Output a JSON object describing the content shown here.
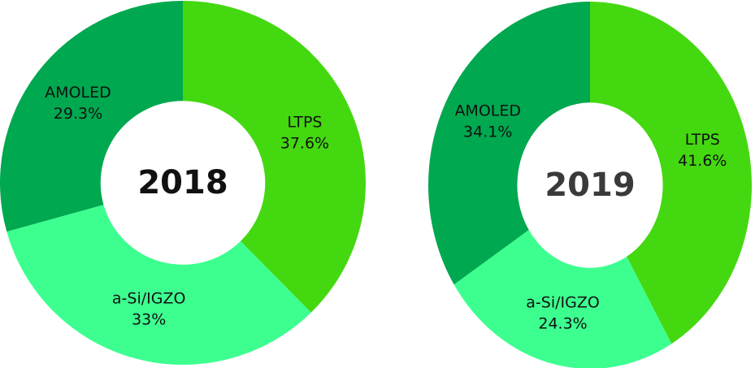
{
  "chart_data": [
    {
      "type": "donut",
      "title": "2018",
      "categories": [
        "LTPS",
        "a-Si/IGZO",
        "AMOLED"
      ],
      "values": [
        37.6,
        33,
        29.3
      ],
      "value_labels": [
        "37.6%",
        "33%",
        "29.3%"
      ],
      "colors": [
        "#44d811",
        "#3dff90",
        "#00a84f"
      ]
    },
    {
      "type": "donut",
      "title": "2019",
      "categories": [
        "LTPS",
        "a-Si/IGZO",
        "AMOLED"
      ],
      "values": [
        41.6,
        24.3,
        34.1
      ],
      "value_labels": [
        "41.6%",
        "24.3%",
        "34.1%"
      ],
      "colors": [
        "#44d811",
        "#3dff90",
        "#00a84f"
      ]
    }
  ]
}
